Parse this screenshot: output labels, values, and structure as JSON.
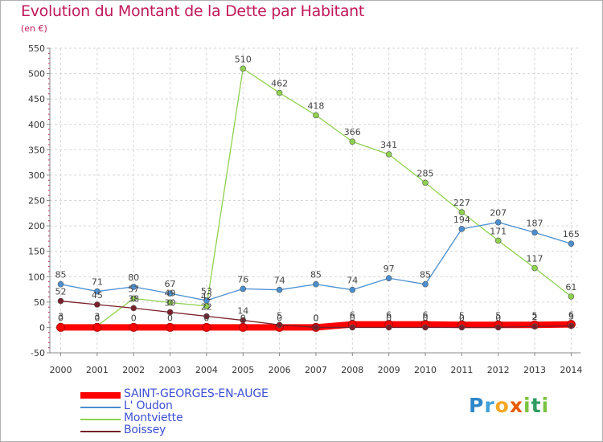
{
  "title": "Evolution du Montant de la Dette par Habitant",
  "subtitle": "(en €)",
  "logo_text": "Proxiti",
  "chart_data": {
    "type": "line",
    "title": "Evolution du Montant de la Dette par Habitant",
    "subtitle": "(en €)",
    "xlabel": "",
    "ylabel": "",
    "x": [
      "2000",
      "2001",
      "2002",
      "2003",
      "2004",
      "2005",
      "2006",
      "2007",
      "2008",
      "2009",
      "2010",
      "2011",
      "2012",
      "2013",
      "2014"
    ],
    "ylim": [
      -50,
      550
    ],
    "yticks": [
      "-50",
      "0",
      "50",
      "100",
      "150",
      "200",
      "250",
      "300",
      "350",
      "400",
      "450",
      "500",
      "550"
    ],
    "grid": true,
    "legend_position": "bottom-left",
    "series": [
      {
        "name": "SAINT-GEORGES-EN-AUGE",
        "color": "#ff0000",
        "values": [
          0,
          0,
          0,
          0,
          0,
          0,
          0,
          0,
          6,
          6,
          6,
          5,
          5,
          5,
          6
        ],
        "labels": [
          "0",
          "0",
          "0",
          "0",
          "0",
          "0",
          "0",
          "0",
          "6",
          "6",
          "6",
          "5",
          "5",
          "5",
          "6"
        ]
      },
      {
        "name": "L' Oudon",
        "color": "#4a8fd0",
        "values": [
          85,
          71,
          80,
          67,
          53,
          76,
          74,
          85,
          74,
          97,
          85,
          194,
          207,
          187,
          165
        ],
        "labels": [
          "85",
          "71",
          "80",
          "67",
          "53",
          "76",
          "74",
          "85",
          "74",
          "97",
          "85",
          "194",
          "207",
          "187",
          "165"
        ]
      },
      {
        "name": "Montviette",
        "color": "#8fd14f",
        "values": [
          3,
          3,
          57,
          49,
          42,
          510,
          462,
          418,
          366,
          341,
          285,
          227,
          171,
          117,
          61
        ],
        "labels": [
          "3",
          "3",
          "57",
          "49",
          "42",
          "510",
          "462",
          "418",
          "366",
          "341",
          "285",
          "227",
          "171",
          "117",
          "61"
        ]
      },
      {
        "name": "Boissey",
        "color": "#7a1f2a",
        "values": [
          52,
          45,
          38,
          30,
          22,
          14,
          5,
          0,
          0,
          0,
          0,
          0,
          0,
          2,
          3
        ],
        "labels": [
          "52",
          "45",
          "38",
          "30",
          "22",
          "14",
          "5",
          "0",
          "0",
          "0",
          "0",
          "0",
          "0",
          "2",
          "3"
        ]
      }
    ]
  }
}
